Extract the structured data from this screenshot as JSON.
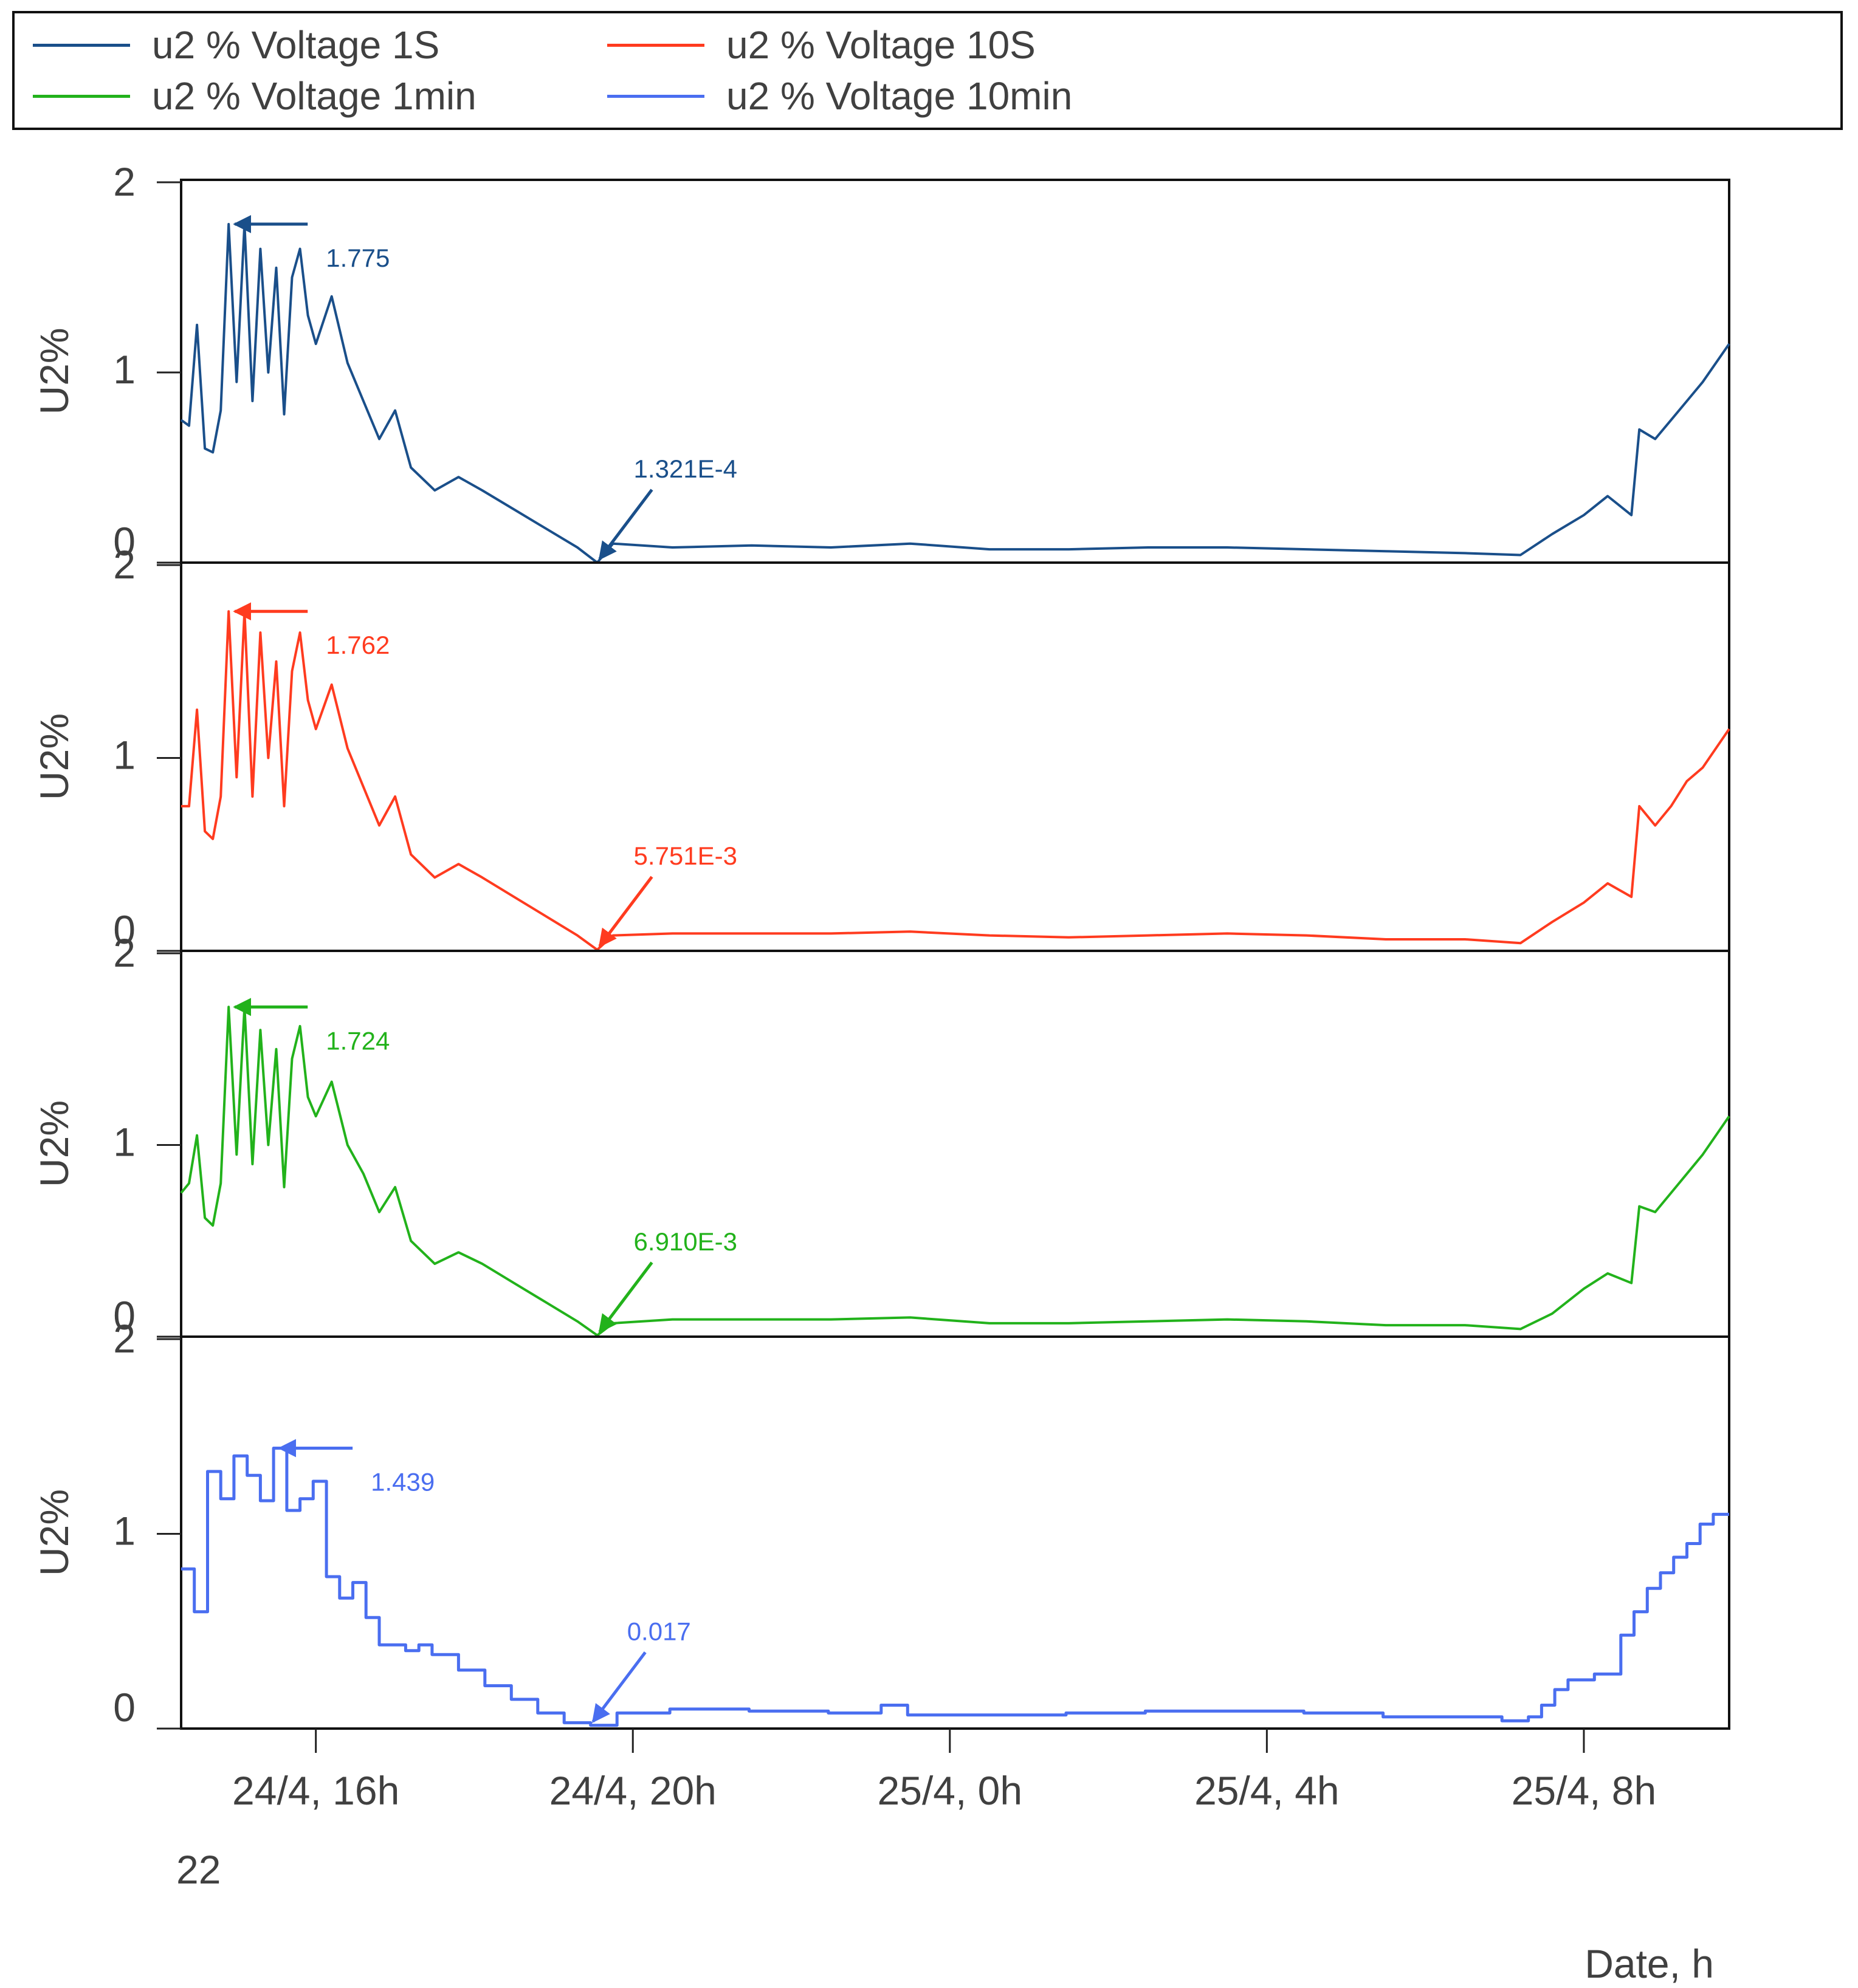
{
  "legend": [
    {
      "label": "u2 % Voltage 1S",
      "color": "#1a4f8a"
    },
    {
      "label": "u2 % Voltage 10S",
      "color": "#ff3b1f"
    },
    {
      "label": "u2 % Voltage 1min",
      "color": "#22b21b"
    },
    {
      "label": "u2 % Voltage 10min",
      "color": "#4a6ef0"
    }
  ],
  "chart_data": {
    "type": "line",
    "xlabel": "Date, h",
    "ylabel": "U2%",
    "x_tick_labels": [
      "24/4,  16h",
      "24/4,  20h",
      "25/4,  0h",
      "25/4,  4h",
      "25/4,  8h"
    ],
    "x_ticks": [
      "2022-04-24 16:00",
      "2022-04-24 20:00",
      "2022-04-25 00:00",
      "2022-04-25 04:00",
      "2022-04-25 08:00"
    ],
    "x_range": [
      "2022-04-24 14:18",
      "2022-04-25 09:50"
    ],
    "year_label": "22",
    "ylim": [
      0,
      2
    ],
    "y_ticks": [
      "0",
      "1",
      "2"
    ],
    "grid": false,
    "legend_position": "top",
    "series": [
      {
        "name": "u2 % Voltage 1S",
        "color": "#1a4f8a",
        "max_annotation": "1.775",
        "min_annotation": "1.321E-4",
        "points": [
          [
            "2022-04-24 14:18",
            0.75
          ],
          [
            "2022-04-24 14:24",
            0.72
          ],
          [
            "2022-04-24 14:30",
            1.25
          ],
          [
            "2022-04-24 14:36",
            0.6
          ],
          [
            "2022-04-24 14:42",
            0.58
          ],
          [
            "2022-04-24 14:48",
            0.8
          ],
          [
            "2022-04-24 14:54",
            1.78
          ],
          [
            "2022-04-24 15:00",
            0.95
          ],
          [
            "2022-04-24 15:06",
            1.78
          ],
          [
            "2022-04-24 15:12",
            0.85
          ],
          [
            "2022-04-24 15:18",
            1.65
          ],
          [
            "2022-04-24 15:24",
            1.0
          ],
          [
            "2022-04-24 15:30",
            1.55
          ],
          [
            "2022-04-24 15:36",
            0.78
          ],
          [
            "2022-04-24 15:42",
            1.5
          ],
          [
            "2022-04-24 15:48",
            1.65
          ],
          [
            "2022-04-24 15:54",
            1.3
          ],
          [
            "2022-04-24 16:00",
            1.15
          ],
          [
            "2022-04-24 16:12",
            1.4
          ],
          [
            "2022-04-24 16:24",
            1.05
          ],
          [
            "2022-04-24 16:36",
            0.85
          ],
          [
            "2022-04-24 16:48",
            0.65
          ],
          [
            "2022-04-24 17:00",
            0.8
          ],
          [
            "2022-04-24 17:12",
            0.5
          ],
          [
            "2022-04-24 17:30",
            0.38
          ],
          [
            "2022-04-24 17:48",
            0.45
          ],
          [
            "2022-04-24 18:06",
            0.38
          ],
          [
            "2022-04-24 18:30",
            0.28
          ],
          [
            "2022-04-24 18:54",
            0.18
          ],
          [
            "2022-04-24 19:18",
            0.08
          ],
          [
            "2022-04-24 19:33",
            0.0001321
          ],
          [
            "2022-04-24 19:45",
            0.1
          ],
          [
            "2022-04-24 20:30",
            0.08
          ],
          [
            "2022-04-24 21:30",
            0.09
          ],
          [
            "2022-04-24 22:30",
            0.08
          ],
          [
            "2022-04-24 23:30",
            0.1
          ],
          [
            "2022-04-25 00:30",
            0.07
          ],
          [
            "2022-04-25 01:30",
            0.07
          ],
          [
            "2022-04-25 02:30",
            0.08
          ],
          [
            "2022-04-25 03:30",
            0.08
          ],
          [
            "2022-04-25 04:30",
            0.07
          ],
          [
            "2022-04-25 05:30",
            0.06
          ],
          [
            "2022-04-25 06:30",
            0.05
          ],
          [
            "2022-04-25 07:12",
            0.04
          ],
          [
            "2022-04-25 07:36",
            0.15
          ],
          [
            "2022-04-25 08:00",
            0.25
          ],
          [
            "2022-04-25 08:18",
            0.35
          ],
          [
            "2022-04-25 08:36",
            0.25
          ],
          [
            "2022-04-25 08:42",
            0.7
          ],
          [
            "2022-04-25 08:54",
            0.65
          ],
          [
            "2022-04-25 09:06",
            0.75
          ],
          [
            "2022-04-25 09:18",
            0.85
          ],
          [
            "2022-04-25 09:30",
            0.95
          ],
          [
            "2022-04-25 09:50",
            1.15
          ]
        ]
      },
      {
        "name": "u2 % Voltage 10S",
        "color": "#ff3b1f",
        "max_annotation": "1.762",
        "min_annotation": "5.751E-3",
        "points": [
          [
            "2022-04-24 14:18",
            0.75
          ],
          [
            "2022-04-24 14:24",
            0.75
          ],
          [
            "2022-04-24 14:30",
            1.25
          ],
          [
            "2022-04-24 14:36",
            0.62
          ],
          [
            "2022-04-24 14:42",
            0.58
          ],
          [
            "2022-04-24 14:48",
            0.8
          ],
          [
            "2022-04-24 14:54",
            1.76
          ],
          [
            "2022-04-24 15:00",
            0.9
          ],
          [
            "2022-04-24 15:06",
            1.76
          ],
          [
            "2022-04-24 15:12",
            0.8
          ],
          [
            "2022-04-24 15:18",
            1.65
          ],
          [
            "2022-04-24 15:24",
            1.0
          ],
          [
            "2022-04-24 15:30",
            1.5
          ],
          [
            "2022-04-24 15:36",
            0.75
          ],
          [
            "2022-04-24 15:42",
            1.45
          ],
          [
            "2022-04-24 15:48",
            1.65
          ],
          [
            "2022-04-24 15:54",
            1.3
          ],
          [
            "2022-04-24 16:00",
            1.15
          ],
          [
            "2022-04-24 16:12",
            1.38
          ],
          [
            "2022-04-24 16:24",
            1.05
          ],
          [
            "2022-04-24 16:36",
            0.85
          ],
          [
            "2022-04-24 16:48",
            0.65
          ],
          [
            "2022-04-24 17:00",
            0.8
          ],
          [
            "2022-04-24 17:12",
            0.5
          ],
          [
            "2022-04-24 17:30",
            0.38
          ],
          [
            "2022-04-24 17:48",
            0.45
          ],
          [
            "2022-04-24 18:06",
            0.38
          ],
          [
            "2022-04-24 18:30",
            0.28
          ],
          [
            "2022-04-24 18:54",
            0.18
          ],
          [
            "2022-04-24 19:18",
            0.08
          ],
          [
            "2022-04-24 19:33",
            0.005751
          ],
          [
            "2022-04-24 19:45",
            0.08
          ],
          [
            "2022-04-24 20:30",
            0.09
          ],
          [
            "2022-04-24 21:30",
            0.09
          ],
          [
            "2022-04-24 22:30",
            0.09
          ],
          [
            "2022-04-24 23:30",
            0.1
          ],
          [
            "2022-04-25 00:30",
            0.08
          ],
          [
            "2022-04-25 01:30",
            0.07
          ],
          [
            "2022-04-25 02:30",
            0.08
          ],
          [
            "2022-04-25 03:30",
            0.09
          ],
          [
            "2022-04-25 04:30",
            0.08
          ],
          [
            "2022-04-25 05:30",
            0.06
          ],
          [
            "2022-04-25 06:30",
            0.06
          ],
          [
            "2022-04-25 07:12",
            0.04
          ],
          [
            "2022-04-25 07:36",
            0.15
          ],
          [
            "2022-04-25 08:00",
            0.25
          ],
          [
            "2022-04-25 08:18",
            0.35
          ],
          [
            "2022-04-25 08:36",
            0.28
          ],
          [
            "2022-04-25 08:42",
            0.75
          ],
          [
            "2022-04-25 08:54",
            0.65
          ],
          [
            "2022-04-25 09:06",
            0.75
          ],
          [
            "2022-04-25 09:18",
            0.88
          ],
          [
            "2022-04-25 09:30",
            0.95
          ],
          [
            "2022-04-25 09:50",
            1.15
          ]
        ]
      },
      {
        "name": "u2 % Voltage 1min",
        "color": "#22b21b",
        "max_annotation": "1.724",
        "min_annotation": "6.910E-3",
        "points": [
          [
            "2022-04-24 14:18",
            0.75
          ],
          [
            "2022-04-24 14:24",
            0.8
          ],
          [
            "2022-04-24 14:30",
            1.05
          ],
          [
            "2022-04-24 14:36",
            0.62
          ],
          [
            "2022-04-24 14:42",
            0.58
          ],
          [
            "2022-04-24 14:48",
            0.8
          ],
          [
            "2022-04-24 14:54",
            1.72
          ],
          [
            "2022-04-24 15:00",
            0.95
          ],
          [
            "2022-04-24 15:06",
            1.72
          ],
          [
            "2022-04-24 15:12",
            0.9
          ],
          [
            "2022-04-24 15:18",
            1.6
          ],
          [
            "2022-04-24 15:24",
            1.0
          ],
          [
            "2022-04-24 15:30",
            1.5
          ],
          [
            "2022-04-24 15:36",
            0.78
          ],
          [
            "2022-04-24 15:42",
            1.45
          ],
          [
            "2022-04-24 15:48",
            1.62
          ],
          [
            "2022-04-24 15:54",
            1.25
          ],
          [
            "2022-04-24 16:00",
            1.15
          ],
          [
            "2022-04-24 16:12",
            1.33
          ],
          [
            "2022-04-24 16:24",
            1.0
          ],
          [
            "2022-04-24 16:36",
            0.85
          ],
          [
            "2022-04-24 16:48",
            0.65
          ],
          [
            "2022-04-24 17:00",
            0.78
          ],
          [
            "2022-04-24 17:12",
            0.5
          ],
          [
            "2022-04-24 17:30",
            0.38
          ],
          [
            "2022-04-24 17:48",
            0.44
          ],
          [
            "2022-04-24 18:06",
            0.38
          ],
          [
            "2022-04-24 18:30",
            0.28
          ],
          [
            "2022-04-24 18:54",
            0.18
          ],
          [
            "2022-04-24 19:18",
            0.08
          ],
          [
            "2022-04-24 19:33",
            0.00691
          ],
          [
            "2022-04-24 19:45",
            0.07
          ],
          [
            "2022-04-24 20:30",
            0.09
          ],
          [
            "2022-04-24 21:30",
            0.09
          ],
          [
            "2022-04-24 22:30",
            0.09
          ],
          [
            "2022-04-24 23:30",
            0.1
          ],
          [
            "2022-04-25 00:30",
            0.07
          ],
          [
            "2022-04-25 01:30",
            0.07
          ],
          [
            "2022-04-25 02:30",
            0.08
          ],
          [
            "2022-04-25 03:30",
            0.09
          ],
          [
            "2022-04-25 04:30",
            0.08
          ],
          [
            "2022-04-25 05:30",
            0.06
          ],
          [
            "2022-04-25 06:30",
            0.06
          ],
          [
            "2022-04-25 07:12",
            0.04
          ],
          [
            "2022-04-25 07:36",
            0.12
          ],
          [
            "2022-04-25 08:00",
            0.25
          ],
          [
            "2022-04-25 08:18",
            0.33
          ],
          [
            "2022-04-25 08:36",
            0.28
          ],
          [
            "2022-04-25 08:42",
            0.68
          ],
          [
            "2022-04-25 08:54",
            0.65
          ],
          [
            "2022-04-25 09:06",
            0.75
          ],
          [
            "2022-04-25 09:18",
            0.85
          ],
          [
            "2022-04-25 09:30",
            0.95
          ],
          [
            "2022-04-25 09:50",
            1.15
          ]
        ]
      },
      {
        "name": "u2 % Voltage 10min",
        "color": "#4a6ef0",
        "step": true,
        "max_annotation": "1.439",
        "min_annotation": "0.017",
        "points": [
          [
            "2022-04-24 14:18",
            0.82
          ],
          [
            "2022-04-24 14:28",
            0.6
          ],
          [
            "2022-04-24 14:38",
            1.32
          ],
          [
            "2022-04-24 14:48",
            1.18
          ],
          [
            "2022-04-24 14:58",
            1.4
          ],
          [
            "2022-04-24 15:08",
            1.3
          ],
          [
            "2022-04-24 15:18",
            1.17
          ],
          [
            "2022-04-24 15:28",
            1.44
          ],
          [
            "2022-04-24 15:38",
            1.12
          ],
          [
            "2022-04-24 15:48",
            1.18
          ],
          [
            "2022-04-24 15:58",
            1.27
          ],
          [
            "2022-04-24 16:08",
            0.78
          ],
          [
            "2022-04-24 16:18",
            0.67
          ],
          [
            "2022-04-24 16:28",
            0.75
          ],
          [
            "2022-04-24 16:38",
            0.57
          ],
          [
            "2022-04-24 16:48",
            0.43
          ],
          [
            "2022-04-24 17:08",
            0.4
          ],
          [
            "2022-04-24 17:18",
            0.43
          ],
          [
            "2022-04-24 17:28",
            0.38
          ],
          [
            "2022-04-24 17:48",
            0.3
          ],
          [
            "2022-04-24 18:08",
            0.22
          ],
          [
            "2022-04-24 18:28",
            0.15
          ],
          [
            "2022-04-24 18:48",
            0.08
          ],
          [
            "2022-04-24 19:08",
            0.03
          ],
          [
            "2022-04-24 19:28",
            0.017
          ],
          [
            "2022-04-24 19:48",
            0.08
          ],
          [
            "2022-04-24 20:28",
            0.1
          ],
          [
            "2022-04-24 21:28",
            0.09
          ],
          [
            "2022-04-24 22:28",
            0.08
          ],
          [
            "2022-04-24 23:08",
            0.12
          ],
          [
            "2022-04-24 23:28",
            0.07
          ],
          [
            "2022-04-25 00:28",
            0.07
          ],
          [
            "2022-04-25 01:28",
            0.08
          ],
          [
            "2022-04-25 02:28",
            0.09
          ],
          [
            "2022-04-25 03:28",
            0.09
          ],
          [
            "2022-04-25 04:28",
            0.08
          ],
          [
            "2022-04-25 05:28",
            0.06
          ],
          [
            "2022-04-25 06:28",
            0.06
          ],
          [
            "2022-04-25 06:58",
            0.04
          ],
          [
            "2022-04-25 07:18",
            0.06
          ],
          [
            "2022-04-25 07:28",
            0.12
          ],
          [
            "2022-04-25 07:38",
            0.2
          ],
          [
            "2022-04-25 07:48",
            0.25
          ],
          [
            "2022-04-25 08:08",
            0.28
          ],
          [
            "2022-04-25 08:28",
            0.48
          ],
          [
            "2022-04-25 08:38",
            0.6
          ],
          [
            "2022-04-25 08:48",
            0.72
          ],
          [
            "2022-04-25 08:58",
            0.8
          ],
          [
            "2022-04-25 09:08",
            0.88
          ],
          [
            "2022-04-25 09:18",
            0.95
          ],
          [
            "2022-04-25 09:28",
            1.05
          ],
          [
            "2022-04-25 09:38",
            1.1
          ],
          [
            "2022-04-25 09:50",
            1.1
          ]
        ]
      }
    ]
  }
}
